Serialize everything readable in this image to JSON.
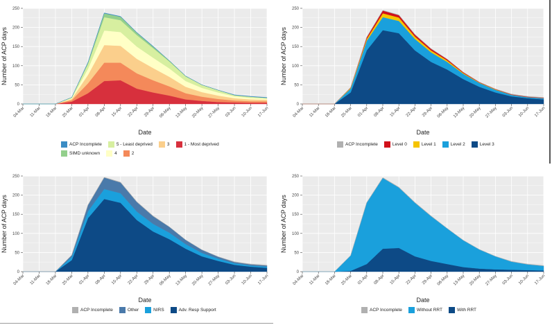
{
  "chart_data": [
    {
      "type": "area",
      "stacked": true,
      "xlabel": "Date",
      "ylabel": "Number of ACP days",
      "ylim": [
        0,
        250
      ],
      "yticks": [
        "0",
        "50",
        "100",
        "150",
        "200",
        "250"
      ],
      "categories": [
        "04-Mar",
        "11-Mar",
        "18-Mar",
        "25-Mar",
        "01-Apr",
        "08-Apr",
        "15-Apr",
        "22-Apr",
        "29-Apr",
        "06-May",
        "13-May",
        "20-May",
        "27-May",
        "03-Jun",
        "10-Jun",
        "17-Jun"
      ],
      "series": [
        {
          "name": "1 - Most deprived",
          "color": "#d7303d",
          "values": [
            0,
            0,
            0,
            6,
            28,
            60,
            62,
            40,
            30,
            22,
            12,
            8,
            5,
            4,
            3,
            3
          ]
        },
        {
          "name": "2",
          "color": "#f4895a",
          "values": [
            0,
            0,
            0,
            4,
            26,
            48,
            46,
            40,
            32,
            24,
            16,
            11,
            8,
            5,
            4,
            4
          ]
        },
        {
          "name": "3",
          "color": "#fbcf8c",
          "values": [
            0,
            0,
            0,
            3,
            22,
            46,
            44,
            38,
            32,
            25,
            17,
            12,
            9,
            6,
            5,
            4
          ]
        },
        {
          "name": "4",
          "color": "#ffffc6",
          "values": [
            0,
            0,
            0,
            2,
            16,
            38,
            36,
            32,
            27,
            22,
            15,
            11,
            8,
            5,
            4,
            3
          ]
        },
        {
          "name": "5 - Least deprived",
          "color": "#d7efa0",
          "values": [
            0,
            0,
            0,
            2,
            13,
            35,
            31,
            30,
            25,
            18,
            12,
            8,
            6,
            3,
            3,
            2
          ]
        },
        {
          "name": "SIMD unknown",
          "color": "#93cf8c",
          "values": [
            0,
            0,
            0,
            0,
            3,
            10,
            9,
            6,
            4,
            2,
            1,
            0,
            0,
            0,
            0,
            0
          ]
        },
        {
          "name": "ACP Incomplete",
          "color": "#3b8cc4",
          "values": [
            0,
            0,
            0,
            0,
            1,
            1,
            1,
            1,
            1,
            0,
            0,
            0,
            0,
            1,
            1,
            1
          ]
        }
      ],
      "legend": [
        {
          "name": "ACP Incomplete",
          "color": "#3b8cc4"
        },
        {
          "name": "5 - Least deprived",
          "color": "#d7efa0"
        },
        {
          "name": "3",
          "color": "#fbcf8c"
        },
        {
          "name": "1 - Most deprived",
          "color": "#d7303d"
        },
        {
          "name": "SIMD unknown",
          "color": "#93cf8c"
        },
        {
          "name": "4",
          "color": "#ffffc6"
        },
        {
          "name": "2",
          "color": "#f4895a"
        }
      ]
    },
    {
      "type": "area",
      "stacked": true,
      "xlabel": "Date",
      "ylabel": "Number of ACP days",
      "ylim": [
        0,
        250
      ],
      "yticks": [
        "0",
        "50",
        "100",
        "150",
        "200",
        "250"
      ],
      "categories": [
        "04-Mar",
        "11-Mar",
        "18-Mar",
        "25-Mar",
        "01-Apr",
        "08-Apr",
        "15-Apr",
        "22-Apr",
        "29-Apr",
        "06-May",
        "13-May",
        "20-May",
        "27-May",
        "03-Jun",
        "10-Jun",
        "17-Jun"
      ],
      "series": [
        {
          "name": "Level 3",
          "color": "#0d4a86",
          "values": [
            0,
            0,
            0,
            30,
            140,
            193,
            185,
            140,
            110,
            90,
            65,
            45,
            30,
            20,
            15,
            12
          ]
        },
        {
          "name": "Level 2",
          "color": "#1aa0dc",
          "values": [
            0,
            0,
            0,
            10,
            25,
            34,
            32,
            30,
            25,
            20,
            14,
            10,
            7,
            4,
            3,
            3
          ]
        },
        {
          "name": "Level 1",
          "color": "#f5c400",
          "values": [
            0,
            0,
            0,
            2,
            5,
            10,
            9,
            6,
            5,
            4,
            2,
            1,
            1,
            0,
            0,
            0
          ]
        },
        {
          "name": "Level 0",
          "color": "#d1101a",
          "values": [
            0,
            0,
            0,
            1,
            4,
            7,
            6,
            5,
            4,
            3,
            2,
            1,
            1,
            1,
            1,
            1
          ]
        },
        {
          "name": "ACP Incomplete",
          "color": "#b0b0b0",
          "values": [
            0,
            0,
            0,
            0,
            1,
            1,
            1,
            1,
            1,
            0,
            0,
            0,
            0,
            1,
            1,
            1
          ]
        }
      ],
      "legend": [
        {
          "name": "ACP Incomplete",
          "color": "#b0b0b0"
        },
        {
          "name": "Level 0",
          "color": "#d1101a"
        },
        {
          "name": "Level 1",
          "color": "#f5c400"
        },
        {
          "name": "Level 2",
          "color": "#1aa0dc"
        },
        {
          "name": "Level 3",
          "color": "#0d4a86"
        }
      ]
    },
    {
      "type": "area",
      "stacked": true,
      "xlabel": "Date",
      "ylabel": "Number of ACP days",
      "ylim": [
        0,
        250
      ],
      "yticks": [
        "0",
        "50",
        "100",
        "150",
        "200",
        "250"
      ],
      "categories": [
        "04-Mar",
        "11-Mar",
        "18-Mar",
        "25-Mar",
        "01-Apr",
        "08-Apr",
        "15-Apr",
        "22-Apr",
        "29-Apr",
        "06-May",
        "13-May",
        "20-May",
        "27-May",
        "03-Jun",
        "10-Jun",
        "17-Jun"
      ],
      "series": [
        {
          "name": "Adv. Resp Support",
          "color": "#0d4a86",
          "values": [
            0,
            0,
            0,
            30,
            140,
            190,
            180,
            135,
            105,
            85,
            60,
            40,
            28,
            18,
            13,
            10
          ]
        },
        {
          "name": "NIRS",
          "color": "#1aa0dc",
          "values": [
            0,
            0,
            0,
            8,
            18,
            26,
            25,
            22,
            20,
            17,
            12,
            9,
            6,
            4,
            3,
            3
          ]
        },
        {
          "name": "Other",
          "color": "#4a7aaa",
          "values": [
            0,
            0,
            0,
            5,
            16,
            30,
            28,
            25,
            20,
            15,
            11,
            8,
            5,
            3,
            3,
            3
          ]
        },
        {
          "name": "ACP Incomplete",
          "color": "#b0b0b0",
          "values": [
            0,
            0,
            0,
            0,
            1,
            1,
            1,
            1,
            1,
            0,
            0,
            0,
            0,
            1,
            1,
            1
          ]
        }
      ],
      "legend": [
        {
          "name": "ACP Incomplete",
          "color": "#b0b0b0"
        },
        {
          "name": "Other",
          "color": "#4a7aaa"
        },
        {
          "name": "NIRS",
          "color": "#1aa0dc"
        },
        {
          "name": "Adv. Resp Support",
          "color": "#0d4a86"
        }
      ]
    },
    {
      "type": "area",
      "stacked": true,
      "xlabel": "Date",
      "ylabel": "Number of ACP days",
      "ylim": [
        0,
        250
      ],
      "yticks": [
        "0",
        "50",
        "100",
        "150",
        "200",
        "250"
      ],
      "categories": [
        "04-Mar",
        "11-Mar",
        "18-Mar",
        "25-Mar",
        "01-Apr",
        "08-Apr",
        "15-Apr",
        "22-Apr",
        "29-Apr",
        "06-May",
        "13-May",
        "20-May",
        "27-May",
        "03-Jun",
        "10-Jun",
        "17-Jun"
      ],
      "series": [
        {
          "name": "With RRT",
          "color": "#0d4a86",
          "values": [
            0,
            0,
            0,
            2,
            20,
            60,
            62,
            40,
            28,
            20,
            12,
            8,
            6,
            5,
            4,
            3
          ]
        },
        {
          "name": "Without RRT",
          "color": "#1aa0dc",
          "values": [
            0,
            0,
            0,
            40,
            160,
            185,
            158,
            140,
            117,
            93,
            70,
            50,
            34,
            21,
            15,
            12
          ]
        },
        {
          "name": "ACP Incomplete",
          "color": "#b0b0b0",
          "values": [
            0,
            0,
            0,
            0,
            1,
            1,
            1,
            1,
            1,
            0,
            0,
            0,
            0,
            1,
            1,
            1
          ]
        }
      ],
      "legend": [
        {
          "name": "ACP Incomplete",
          "color": "#b0b0b0"
        },
        {
          "name": "Without RRT",
          "color": "#1aa0dc"
        },
        {
          "name": "With RRT",
          "color": "#0d4a86"
        }
      ]
    }
  ]
}
